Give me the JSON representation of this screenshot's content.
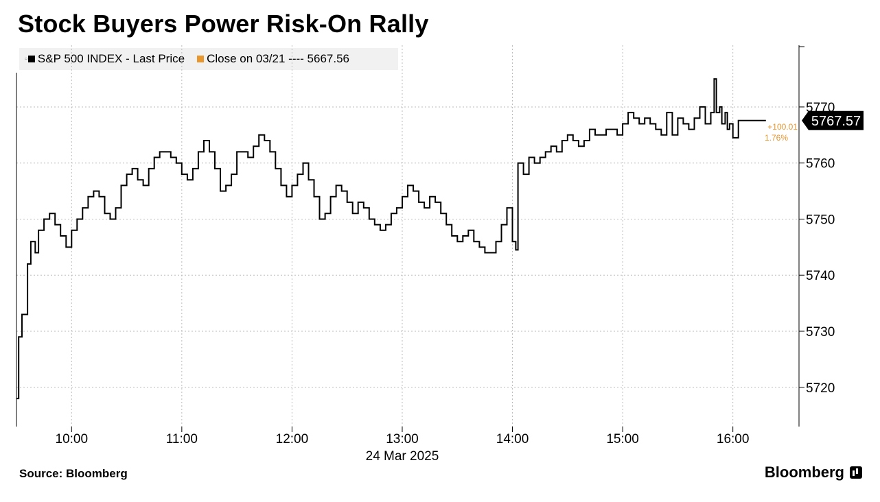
{
  "title": "Stock Buyers Power Risk-On Rally",
  "legend": {
    "series_label": "S&P 500 INDEX - Last Price",
    "reference_label": "Close on 03/21 ---- 5667.56"
  },
  "source": "Source: Bloomberg",
  "brand": "Bloomberg",
  "colors": {
    "line": "#000000",
    "reference": "#e8962e",
    "grid": "#bbbbbb"
  },
  "chart_data": {
    "type": "line",
    "x_label": "24 Mar 2025",
    "x_ticks": [
      "10:00",
      "11:00",
      "12:00",
      "13:00",
      "14:00",
      "15:00",
      "16:00"
    ],
    "x_tick_hours": [
      10,
      11,
      12,
      13,
      14,
      15,
      16
    ],
    "x_range": [
      9.5,
      16.6
    ],
    "y_ticks": [
      5720,
      5730,
      5740,
      5750,
      5760,
      5770
    ],
    "y_range": [
      5713,
      5781
    ],
    "grid": true,
    "last_value": "5767.57",
    "change_label": "+100.01",
    "change_pct_label": "1.76%",
    "series": [
      {
        "name": "S&P 500 INDEX - Last Price",
        "x": [
          9.5,
          9.52,
          9.55,
          9.6,
          9.63,
          9.67,
          9.7,
          9.75,
          9.8,
          9.85,
          9.9,
          9.95,
          10.0,
          10.05,
          10.1,
          10.15,
          10.2,
          10.25,
          10.3,
          10.35,
          10.4,
          10.45,
          10.5,
          10.55,
          10.6,
          10.65,
          10.7,
          10.75,
          10.8,
          10.85,
          10.9,
          10.95,
          11.0,
          11.05,
          11.1,
          11.15,
          11.2,
          11.25,
          11.3,
          11.35,
          11.4,
          11.45,
          11.5,
          11.55,
          11.6,
          11.65,
          11.7,
          11.75,
          11.8,
          11.85,
          11.9,
          11.95,
          12.0,
          12.05,
          12.1,
          12.15,
          12.2,
          12.25,
          12.3,
          12.35,
          12.4,
          12.45,
          12.5,
          12.55,
          12.6,
          12.65,
          12.7,
          12.75,
          12.8,
          12.85,
          12.9,
          12.95,
          13.0,
          13.05,
          13.1,
          13.15,
          13.2,
          13.25,
          13.3,
          13.35,
          13.4,
          13.45,
          13.5,
          13.55,
          13.6,
          13.65,
          13.7,
          13.75,
          13.8,
          13.85,
          13.9,
          13.95,
          14.0,
          14.03,
          14.05,
          14.1,
          14.15,
          14.2,
          14.25,
          14.3,
          14.35,
          14.4,
          14.45,
          14.5,
          14.55,
          14.6,
          14.65,
          14.7,
          14.75,
          14.8,
          14.85,
          14.9,
          14.95,
          15.0,
          15.05,
          15.1,
          15.15,
          15.2,
          15.25,
          15.3,
          15.35,
          15.4,
          15.45,
          15.5,
          15.55,
          15.6,
          15.65,
          15.7,
          15.75,
          15.8,
          15.83,
          15.85,
          15.88,
          15.9,
          15.93,
          15.95,
          15.97,
          16.0,
          16.05,
          16.1,
          16.2,
          16.3
        ],
        "y": [
          5718,
          5729,
          5733,
          5742,
          5746,
          5744,
          5748,
          5750,
          5751,
          5749,
          5747,
          5745,
          5748,
          5750,
          5752,
          5754,
          5755,
          5754,
          5751,
          5750,
          5752,
          5756,
          5758,
          5759,
          5757,
          5756,
          5759,
          5761,
          5762,
          5762,
          5761,
          5760,
          5758,
          5757,
          5759,
          5762,
          5764,
          5762,
          5759,
          5755,
          5756,
          5758,
          5762,
          5762,
          5761,
          5763,
          5765,
          5764,
          5762,
          5759,
          5756,
          5754,
          5756,
          5758,
          5760,
          5757,
          5754,
          5750,
          5751,
          5754,
          5756,
          5755,
          5753,
          5751,
          5753,
          5752,
          5750,
          5749,
          5748,
          5749,
          5751,
          5752,
          5754,
          5756,
          5755,
          5753,
          5752,
          5754,
          5753,
          5751,
          5749,
          5747,
          5746,
          5747,
          5748,
          5746,
          5745,
          5744,
          5744,
          5746,
          5749,
          5752,
          5746,
          5744.5,
          5760,
          5758,
          5761,
          5760,
          5761,
          5762,
          5763,
          5762,
          5764,
          5765,
          5764,
          5763,
          5764,
          5766,
          5765,
          5765,
          5766,
          5766,
          5765,
          5767,
          5769,
          5768,
          5767,
          5768,
          5767,
          5766,
          5765,
          5769,
          5765,
          5768,
          5767,
          5766,
          5768,
          5770,
          5767,
          5769,
          5775,
          5769,
          5770,
          5767,
          5769,
          5766,
          5767,
          5764.5,
          5767.57,
          5767.57,
          5767.57,
          5767.57
        ]
      }
    ]
  }
}
